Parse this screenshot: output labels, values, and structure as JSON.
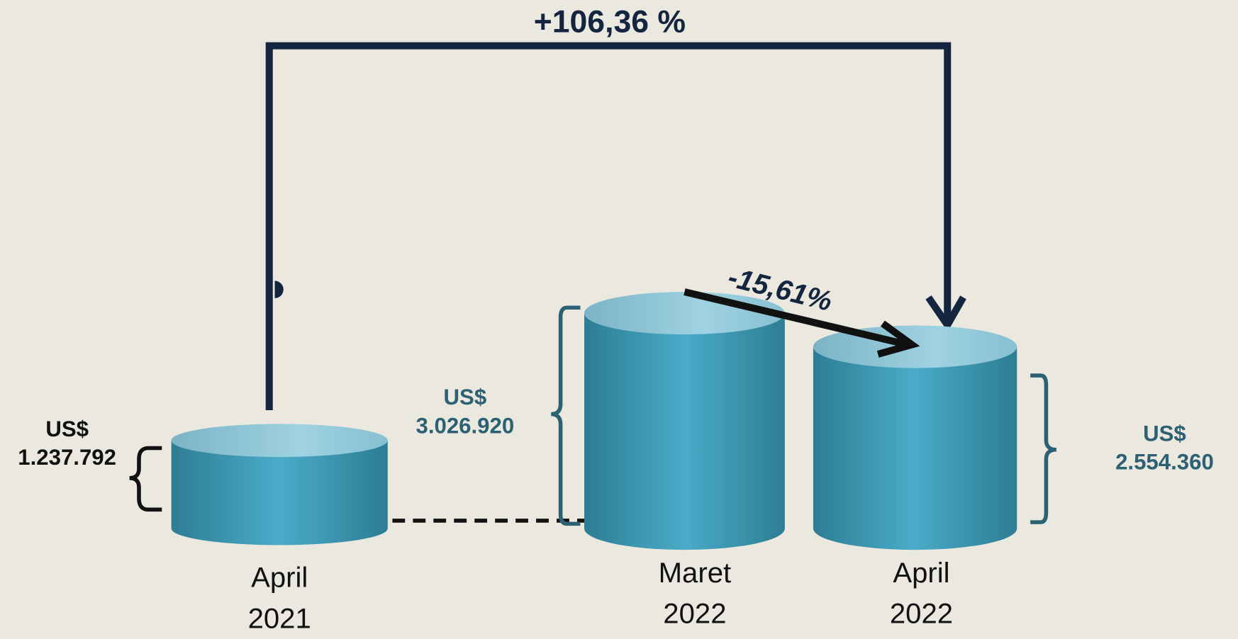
{
  "chart_data": {
    "type": "cylinder",
    "categories": [
      "April 2021",
      "Maret 2022",
      "April 2022"
    ],
    "values": [
      1237792,
      3026920,
      2554360
    ],
    "value_labels": [
      "US$ 1.237.792",
      "US$ 3.026.920",
      "US$ 2.554.360"
    ],
    "annotations": [
      "+106,36 %",
      "-15,61%"
    ],
    "color": "#46a6c2"
  }
}
